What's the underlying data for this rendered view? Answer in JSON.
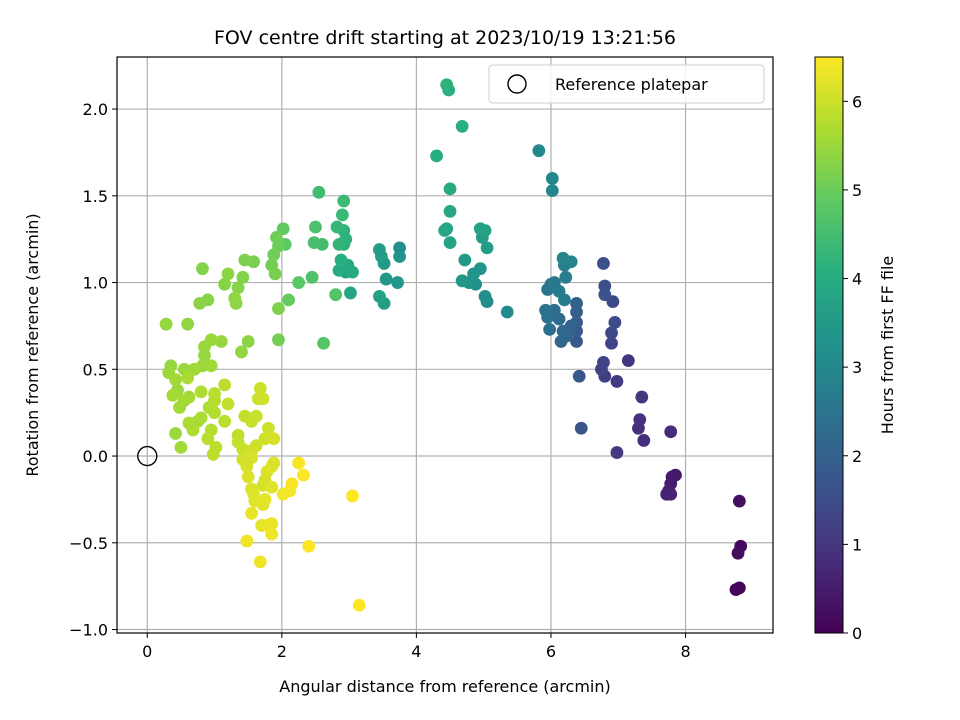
{
  "chart_data": {
    "type": "scatter",
    "title": "FOV centre drift starting at 2023/10/19 13:21:56",
    "xlabel": "Angular distance from reference (arcmin)",
    "ylabel": "Rotation from reference (arcmin)",
    "xlim": [
      -0.45,
      9.3
    ],
    "ylim": [
      -1.02,
      2.3
    ],
    "xticks": [
      0,
      2,
      4,
      6,
      8
    ],
    "yticks": [
      -1.0,
      -0.5,
      0.0,
      0.5,
      1.0,
      1.5,
      2.0
    ],
    "xtick_labels": [
      "0",
      "2",
      "4",
      "6",
      "8"
    ],
    "ytick_labels": [
      "−1.0",
      "−0.5",
      "0.0",
      "0.5",
      "1.0",
      "1.5",
      "2.0"
    ],
    "grid": true,
    "legend": {
      "placement": "top-right",
      "entries": [
        "Reference platepar"
      ]
    },
    "reference_point": {
      "x": 0,
      "y": 0
    },
    "colorbar": {
      "label": "Hours from first FF file",
      "colormap": "viridis",
      "range": [
        0,
        6.5
      ],
      "ticks": [
        0,
        1,
        2,
        3,
        4,
        5,
        6
      ],
      "tick_labels": [
        "0",
        "1",
        "2",
        "3",
        "4",
        "5",
        "6"
      ]
    },
    "points": [
      [
        8.75,
        -0.77,
        0.05
      ],
      [
        8.8,
        -0.76,
        0.1
      ],
      [
        8.82,
        -0.52,
        0.15
      ],
      [
        8.78,
        -0.56,
        0.2
      ],
      [
        8.8,
        -0.26,
        0.25
      ],
      [
        7.85,
        -0.11,
        0.4
      ],
      [
        7.8,
        -0.12,
        0.45
      ],
      [
        7.78,
        -0.16,
        0.5
      ],
      [
        7.75,
        -0.2,
        0.55
      ],
      [
        7.72,
        -0.22,
        0.6
      ],
      [
        7.78,
        -0.22,
        0.65
      ],
      [
        7.78,
        0.14,
        0.75
      ],
      [
        7.38,
        0.09,
        0.85
      ],
      [
        7.3,
        0.16,
        0.9
      ],
      [
        7.32,
        0.21,
        0.95
      ],
      [
        7.35,
        0.34,
        1.0
      ],
      [
        7.15,
        0.55,
        1.05
      ],
      [
        6.98,
        0.02,
        1.1
      ],
      [
        6.98,
        0.43,
        1.15
      ],
      [
        6.8,
        0.46,
        1.2
      ],
      [
        6.75,
        0.5,
        1.25
      ],
      [
        6.78,
        0.54,
        1.3
      ],
      [
        6.9,
        0.65,
        1.35
      ],
      [
        6.9,
        0.71,
        1.4
      ],
      [
        6.92,
        0.89,
        1.45
      ],
      [
        6.95,
        0.77,
        1.5
      ],
      [
        6.8,
        0.98,
        1.55
      ],
      [
        6.78,
        1.11,
        1.6
      ],
      [
        6.8,
        0.93,
        1.65
      ],
      [
        6.45,
        0.16,
        1.7
      ],
      [
        6.42,
        0.46,
        1.75
      ],
      [
        6.38,
        0.66,
        1.8
      ],
      [
        6.38,
        0.72,
        1.85
      ],
      [
        6.38,
        0.77,
        1.9
      ],
      [
        6.38,
        0.83,
        1.95
      ],
      [
        6.38,
        0.88,
        2.0
      ],
      [
        6.3,
        0.75,
        2.05
      ],
      [
        6.22,
        0.69,
        2.1
      ],
      [
        6.15,
        0.66,
        2.15
      ],
      [
        6.18,
        0.72,
        2.2
      ],
      [
        6.12,
        0.79,
        2.25
      ],
      [
        6.05,
        0.84,
        2.3
      ],
      [
        5.98,
        0.73,
        2.35
      ],
      [
        5.95,
        0.8,
        2.4
      ],
      [
        5.92,
        0.84,
        2.45
      ],
      [
        5.95,
        0.96,
        2.5
      ],
      [
        6.0,
        0.99,
        2.55
      ],
      [
        6.05,
        1.0,
        2.6
      ],
      [
        6.12,
        0.95,
        2.65
      ],
      [
        6.2,
        0.9,
        2.7
      ],
      [
        6.22,
        1.03,
        2.75
      ],
      [
        6.2,
        1.1,
        2.8
      ],
      [
        6.18,
        1.14,
        2.85
      ],
      [
        6.3,
        1.12,
        2.9
      ],
      [
        6.02,
        1.53,
        2.95
      ],
      [
        6.02,
        1.6,
        3.0
      ],
      [
        5.82,
        1.76,
        3.05
      ],
      [
        5.35,
        0.83,
        3.1
      ],
      [
        5.05,
        0.89,
        3.15
      ],
      [
        5.02,
        0.92,
        3.2
      ],
      [
        4.88,
        0.99,
        3.25
      ],
      [
        4.78,
        1.0,
        3.3
      ],
      [
        4.85,
        1.05,
        3.35
      ],
      [
        4.95,
        1.08,
        3.4
      ],
      [
        4.68,
        1.01,
        3.45
      ],
      [
        4.72,
        1.13,
        3.5
      ],
      [
        5.05,
        1.2,
        3.55
      ],
      [
        4.98,
        1.26,
        3.6
      ],
      [
        5.02,
        1.3,
        3.65
      ],
      [
        4.95,
        1.31,
        3.7
      ],
      [
        4.5,
        1.23,
        3.75
      ],
      [
        4.45,
        1.31,
        3.8
      ],
      [
        4.42,
        1.3,
        3.85
      ],
      [
        4.5,
        1.41,
        3.9
      ],
      [
        4.5,
        1.54,
        3.95
      ],
      [
        4.3,
        1.73,
        4.0
      ],
      [
        4.68,
        1.9,
        4.05
      ],
      [
        4.48,
        2.11,
        4.1
      ],
      [
        4.45,
        2.14,
        4.15
      ],
      [
        3.75,
        1.2,
        3.2
      ],
      [
        3.75,
        1.15,
        3.3
      ],
      [
        3.72,
        1.0,
        3.4
      ],
      [
        3.55,
        1.02,
        3.45
      ],
      [
        3.52,
        1.11,
        3.5
      ],
      [
        3.45,
        1.19,
        3.55
      ],
      [
        3.48,
        1.15,
        3.6
      ],
      [
        3.52,
        0.88,
        3.65
      ],
      [
        3.45,
        0.92,
        3.7
      ],
      [
        3.02,
        0.94,
        3.75
      ],
      [
        2.95,
        1.06,
        3.8
      ],
      [
        2.92,
        1.08,
        3.85
      ],
      [
        2.98,
        1.1,
        3.9
      ],
      [
        3.05,
        1.06,
        3.95
      ],
      [
        2.85,
        1.07,
        4.0
      ],
      [
        2.88,
        1.13,
        4.05
      ],
      [
        2.92,
        1.22,
        4.1
      ],
      [
        2.95,
        1.25,
        4.15
      ],
      [
        2.92,
        1.3,
        4.2
      ],
      [
        2.85,
        1.22,
        4.25
      ],
      [
        2.82,
        1.32,
        4.3
      ],
      [
        2.9,
        1.39,
        4.35
      ],
      [
        2.92,
        1.47,
        4.4
      ],
      [
        2.55,
        1.52,
        4.45
      ],
      [
        2.6,
        1.22,
        4.5
      ],
      [
        2.48,
        1.23,
        4.55
      ],
      [
        2.5,
        1.32,
        4.6
      ],
      [
        2.45,
        1.03,
        4.65
      ],
      [
        2.8,
        0.93,
        4.7
      ],
      [
        2.62,
        0.65,
        4.75
      ],
      [
        2.25,
        1.0,
        4.8
      ],
      [
        2.05,
        1.22,
        4.85
      ],
      [
        2.02,
        1.31,
        4.9
      ],
      [
        2.1,
        0.9,
        4.95
      ],
      [
        1.95,
        1.21,
        5.0
      ],
      [
        1.88,
        1.16,
        5.05
      ],
      [
        1.85,
        1.1,
        5.1
      ],
      [
        1.9,
        1.05,
        5.15
      ],
      [
        1.95,
        0.85,
        5.2
      ],
      [
        1.95,
        0.67,
        5.1
      ],
      [
        1.92,
        1.26,
        5.05
      ],
      [
        1.58,
        1.12,
        5.15
      ],
      [
        1.45,
        1.13,
        5.2
      ],
      [
        1.42,
        1.03,
        5.25
      ],
      [
        1.35,
        0.97,
        5.3
      ],
      [
        1.32,
        0.88,
        5.35
      ],
      [
        1.3,
        0.91,
        5.4
      ],
      [
        1.2,
        1.05,
        5.35
      ],
      [
        1.15,
        0.99,
        5.3
      ],
      [
        0.82,
        1.08,
        5.25
      ],
      [
        0.9,
        0.9,
        5.3
      ],
      [
        0.78,
        0.88,
        5.35
      ],
      [
        0.6,
        0.76,
        5.4
      ],
      [
        0.28,
        0.76,
        5.45
      ],
      [
        1.5,
        0.66,
        5.35
      ],
      [
        1.4,
        0.6,
        5.4
      ],
      [
        1.1,
        0.66,
        5.45
      ],
      [
        0.95,
        0.67,
        5.5
      ],
      [
        0.85,
        0.63,
        5.5
      ],
      [
        0.85,
        0.58,
        5.45
      ],
      [
        0.82,
        0.52,
        5.5
      ],
      [
        0.95,
        0.52,
        5.55
      ],
      [
        0.7,
        0.5,
        5.55
      ],
      [
        0.55,
        0.5,
        5.5
      ],
      [
        0.35,
        0.52,
        5.45
      ],
      [
        0.32,
        0.48,
        5.5
      ],
      [
        0.42,
        0.44,
        5.55
      ],
      [
        0.45,
        0.38,
        5.5
      ],
      [
        0.38,
        0.35,
        5.6
      ],
      [
        0.48,
        0.28,
        5.55
      ],
      [
        0.55,
        0.32,
        5.6
      ],
      [
        0.62,
        0.34,
        5.6
      ],
      [
        0.6,
        0.45,
        5.65
      ],
      [
        0.8,
        0.37,
        5.7
      ],
      [
        0.75,
        0.2,
        5.6
      ],
      [
        0.8,
        0.22,
        5.65
      ],
      [
        0.92,
        0.28,
        5.7
      ],
      [
        1.0,
        0.25,
        5.75
      ],
      [
        1.0,
        0.32,
        5.75
      ],
      [
        1.0,
        0.36,
        5.8
      ],
      [
        0.95,
        0.15,
        5.75
      ],
      [
        0.9,
        0.1,
        5.8
      ],
      [
        1.02,
        0.05,
        5.85
      ],
      [
        0.98,
        0.01,
        5.85
      ],
      [
        0.68,
        0.15,
        5.7
      ],
      [
        0.62,
        0.19,
        5.65
      ],
      [
        0.42,
        0.13,
        5.5
      ],
      [
        0.5,
        0.05,
        5.55
      ],
      [
        1.15,
        0.2,
        5.8
      ],
      [
        1.15,
        0.41,
        5.85
      ],
      [
        1.2,
        0.3,
        5.9
      ],
      [
        1.35,
        0.12,
        5.85
      ],
      [
        1.35,
        0.08,
        5.9
      ],
      [
        1.42,
        0.04,
        5.95
      ],
      [
        1.45,
        0.23,
        5.9
      ],
      [
        1.55,
        0.2,
        5.95
      ],
      [
        1.62,
        0.23,
        5.95
      ],
      [
        1.68,
        0.39,
        6.0
      ],
      [
        1.65,
        0.33,
        6.0
      ],
      [
        1.72,
        0.33,
        6.05
      ],
      [
        1.8,
        0.16,
        6.0
      ],
      [
        1.75,
        0.1,
        6.05
      ],
      [
        1.62,
        0.06,
        6.0
      ],
      [
        1.55,
        0.03,
        6.05
      ],
      [
        1.55,
        -0.01,
        6.1
      ],
      [
        1.42,
        -0.02,
        6.05
      ],
      [
        1.48,
        -0.06,
        6.1
      ],
      [
        1.5,
        -0.12,
        6.15
      ],
      [
        1.55,
        -0.19,
        6.15
      ],
      [
        1.58,
        -0.22,
        6.2
      ],
      [
        1.6,
        -0.26,
        6.2
      ],
      [
        1.72,
        -0.17,
        6.1
      ],
      [
        1.75,
        -0.14,
        6.1
      ],
      [
        1.78,
        -0.09,
        6.15
      ],
      [
        1.85,
        -0.06,
        6.2
      ],
      [
        1.88,
        -0.04,
        6.15
      ],
      [
        1.88,
        0.1,
        6.1
      ],
      [
        1.85,
        -0.18,
        6.2
      ],
      [
        1.75,
        -0.25,
        6.25
      ],
      [
        1.72,
        -0.28,
        6.25
      ],
      [
        1.7,
        -0.4,
        6.25
      ],
      [
        1.78,
        -0.4,
        6.3
      ],
      [
        1.85,
        -0.39,
        6.3
      ],
      [
        1.85,
        -0.45,
        6.35
      ],
      [
        1.55,
        -0.33,
        6.3
      ],
      [
        1.48,
        -0.49,
        6.35
      ],
      [
        1.68,
        -0.61,
        6.35
      ],
      [
        2.02,
        -0.22,
        6.4
      ],
      [
        2.12,
        -0.2,
        6.4
      ],
      [
        2.15,
        -0.16,
        6.45
      ],
      [
        2.25,
        -0.04,
        6.45
      ],
      [
        2.32,
        -0.11,
        6.5
      ],
      [
        2.4,
        -0.52,
        6.5
      ],
      [
        3.05,
        -0.23,
        6.55
      ],
      [
        3.15,
        -0.86,
        6.6
      ]
    ]
  }
}
